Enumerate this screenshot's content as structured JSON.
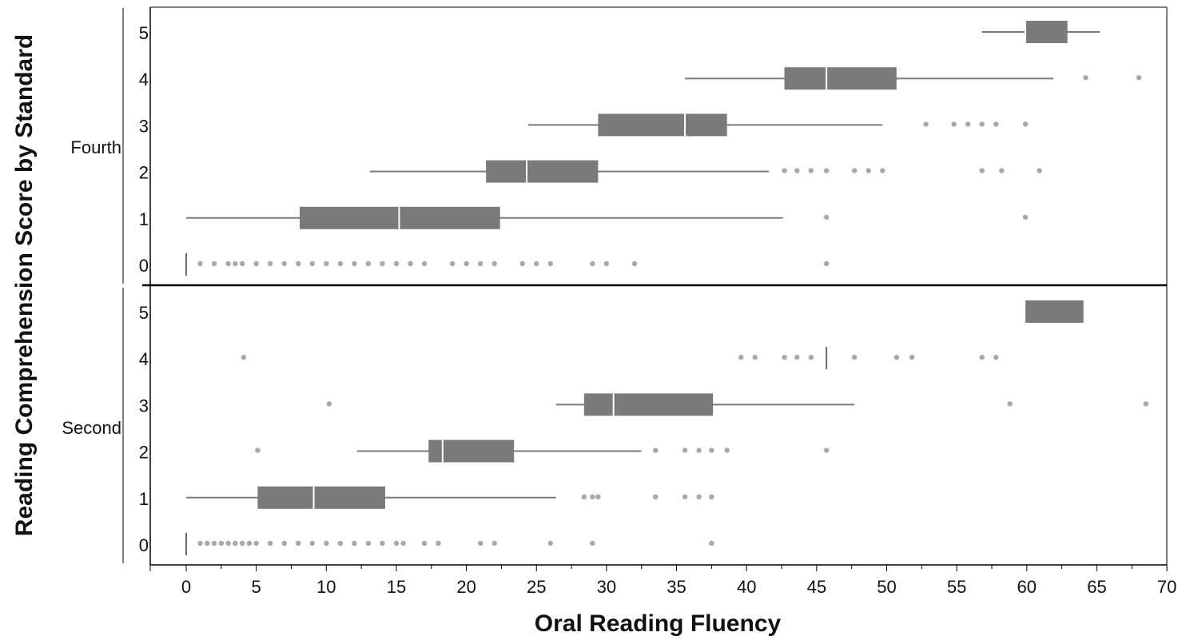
{
  "chart_data": {
    "type": "boxplot",
    "xlabel": "Oral Reading Fluency",
    "ylabel": "Reading Comprehension Score by Standard",
    "xlim": [
      -2.5,
      70
    ],
    "xticks": [
      "0",
      "5",
      "10",
      "15",
      "20",
      "25",
      "30",
      "35",
      "40",
      "45",
      "50",
      "55",
      "60",
      "65",
      "70"
    ],
    "score_labels": [
      "0",
      "1",
      "2",
      "3",
      "4",
      "5"
    ],
    "box_color": "#7a7a7a",
    "whisker_color": "#7a7a7a",
    "outlier_color": "#a8a8a8",
    "median_color": "#ffffff",
    "panels": [
      {
        "group": "Fourth",
        "rows": [
          {
            "score": 0,
            "median": 0,
            "outliers": [
              1,
              2,
              3,
              3.5,
              4,
              5,
              6,
              7,
              8,
              9,
              10,
              11,
              12,
              13,
              14,
              15,
              16,
              17,
              19,
              20,
              21,
              22,
              24,
              25,
              26,
              29,
              30,
              32,
              45.7
            ]
          },
          {
            "score": 1,
            "whisker_low": 0,
            "q1": 8.1,
            "median": 15.2,
            "q3": 22.4,
            "whisker_high": 42.6,
            "outliers": [
              45.7,
              59.9
            ]
          },
          {
            "score": 2,
            "whisker_low": 13.1,
            "q1": 21.4,
            "median": 24.3,
            "q3": 29.4,
            "whisker_high": 41.6,
            "outliers": [
              42.7,
              43.6,
              44.6,
              45.7,
              47.7,
              48.7,
              49.7,
              56.8,
              58.2,
              60.9
            ]
          },
          {
            "score": 3,
            "whisker_low": 24.4,
            "q1": 29.4,
            "median": 35.6,
            "q3": 38.6,
            "whisker_high": 49.7,
            "outliers": [
              52.8,
              54.8,
              55.8,
              56.8,
              57.8,
              59.9
            ]
          },
          {
            "score": 4,
            "whisker_low": 35.6,
            "q1": 42.7,
            "median": 45.7,
            "q3": 50.7,
            "whisker_high": 61.9,
            "outliers": [
              64.2,
              68.0
            ]
          },
          {
            "score": 5,
            "whisker_low": 56.8,
            "q1": 59.9,
            "median": 59.9,
            "q3": 62.9,
            "whisker_high": 65.2,
            "outliers": []
          }
        ]
      },
      {
        "group": "Second",
        "rows": [
          {
            "score": 0,
            "median": 0,
            "outliers": [
              1,
              1.5,
              2,
              2.5,
              3,
              3.5,
              4,
              4.5,
              5,
              6,
              7,
              8,
              9,
              10,
              11,
              12,
              13,
              14,
              15,
              15.5,
              17,
              18,
              21,
              22,
              26,
              29,
              37.5
            ]
          },
          {
            "score": 1,
            "whisker_low": 0,
            "q1": 5.1,
            "median": 9.1,
            "q3": 14.2,
            "whisker_high": 26.4,
            "outliers": [
              28.4,
              29.0,
              29.4,
              33.5,
              35.6,
              36.6,
              37.5
            ]
          },
          {
            "score": 2,
            "whisker_low": 12.2,
            "q1": 17.3,
            "median": 18.3,
            "q3": 23.4,
            "whisker_high": 32.5,
            "outliers": [
              5.1,
              33.5,
              35.6,
              36.6,
              37.5,
              38.6,
              45.7
            ]
          },
          {
            "score": 3,
            "whisker_low": 26.4,
            "q1": 28.4,
            "median": 30.5,
            "q3": 37.6,
            "whisker_high": 47.7,
            "outliers": [
              10.2,
              58.8,
              68.5
            ]
          },
          {
            "score": 4,
            "median": 45.7,
            "outliers": [
              4.1,
              39.6,
              40.6,
              42.7,
              43.6,
              44.6,
              47.7,
              50.7,
              51.8,
              56.8,
              57.8
            ]
          },
          {
            "score": 5,
            "whisker_low": 59.9,
            "q1": 59.9,
            "median": 64.1,
            "q3": 64.1,
            "whisker_high": 64.1,
            "outliers": []
          }
        ]
      }
    ]
  }
}
